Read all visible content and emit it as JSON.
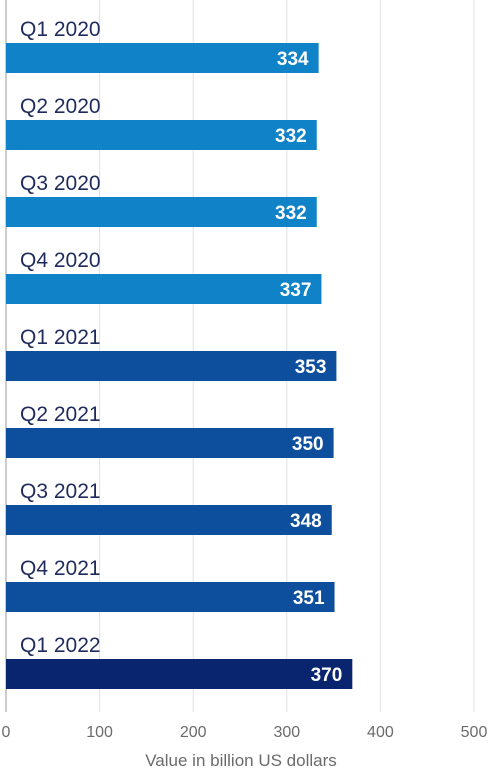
{
  "chart_data": {
    "type": "bar",
    "orientation": "horizontal",
    "categories": [
      "Q1 2020",
      "Q2 2020",
      "Q3 2020",
      "Q4 2020",
      "Q1 2021",
      "Q2 2021",
      "Q3 2021",
      "Q4 2021",
      "Q1 2022"
    ],
    "values": [
      334,
      332,
      332,
      337,
      353,
      350,
      348,
      351,
      370
    ],
    "bar_colors": [
      "#0f82c8",
      "#0f82c8",
      "#0f82c8",
      "#0f82c8",
      "#0d4f9c",
      "#0d4f9c",
      "#0d4f9c",
      "#0d4f9c",
      "#0a2570"
    ],
    "xlabel": "Value in billion US dollars",
    "ylabel": "",
    "xlim": [
      0,
      500
    ],
    "x_ticks": [
      0,
      100,
      200,
      300,
      400,
      500
    ],
    "grid": "vertical",
    "data_labels": true,
    "legend": "none"
  }
}
